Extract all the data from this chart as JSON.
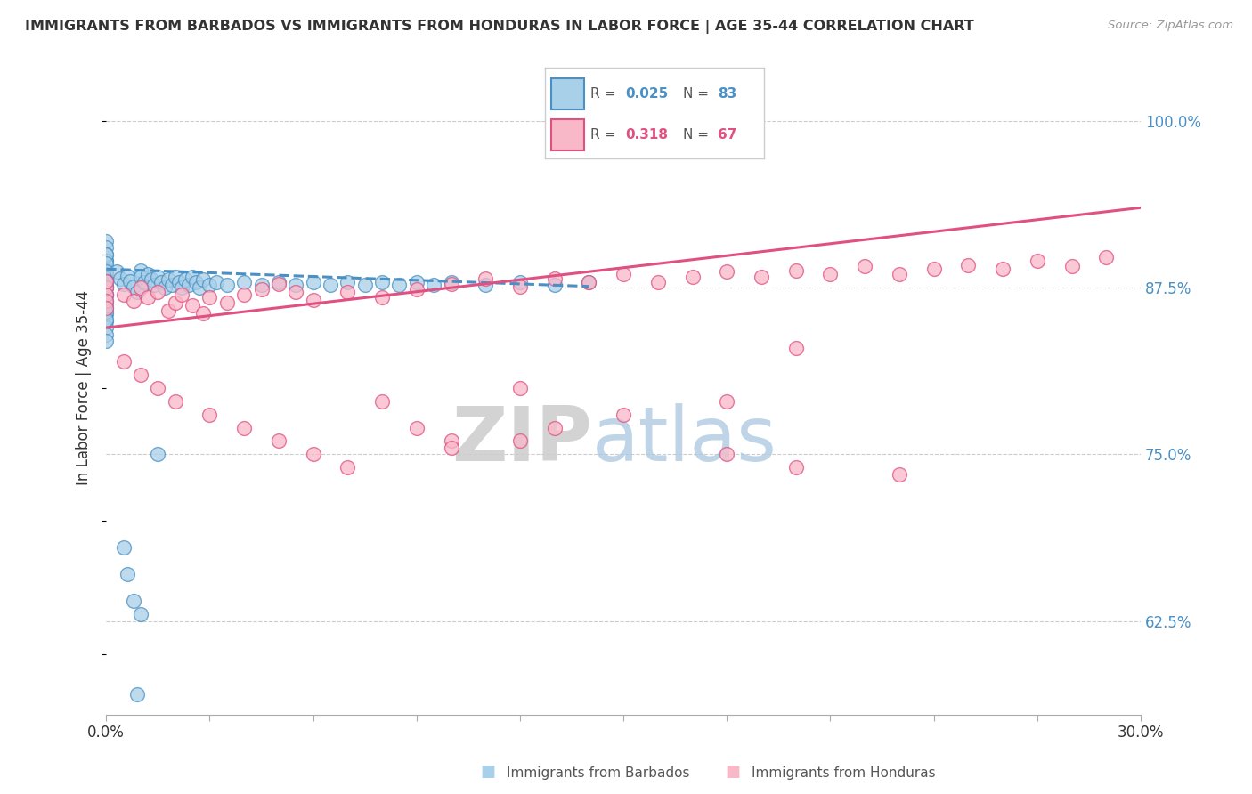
{
  "title": "IMMIGRANTS FROM BARBADOS VS IMMIGRANTS FROM HONDURAS IN LABOR FORCE | AGE 35-44 CORRELATION CHART",
  "source": "Source: ZipAtlas.com",
  "ylabel": "In Labor Force | Age 35-44",
  "yticks": [
    "62.5%",
    "75.0%",
    "87.5%",
    "100.0%"
  ],
  "ytick_vals": [
    0.625,
    0.75,
    0.875,
    1.0
  ],
  "xlim": [
    0.0,
    0.3
  ],
  "ylim": [
    0.555,
    1.045
  ],
  "color_blue": "#a8d0e8",
  "color_pink": "#f9b8c8",
  "color_blue_line": "#4a90c4",
  "color_pink_line": "#e05080",
  "watermark_zip": "ZIP",
  "watermark_atlas": "atlas",
  "barbados_x": [
    0.0,
    0.0,
    0.0,
    0.0,
    0.0,
    0.0,
    0.0,
    0.0,
    0.0,
    0.0,
    0.0,
    0.0,
    0.0,
    0.0,
    0.0,
    0.0,
    0.0,
    0.0,
    0.0,
    0.0,
    0.0,
    0.0,
    0.0,
    0.0,
    0.0,
    0.0,
    0.0,
    0.0,
    0.0,
    0.0,
    0.003,
    0.004,
    0.005,
    0.006,
    0.007,
    0.008,
    0.009,
    0.01,
    0.01,
    0.011,
    0.012,
    0.013,
    0.014,
    0.015,
    0.016,
    0.017,
    0.018,
    0.019,
    0.02,
    0.021,
    0.022,
    0.023,
    0.024,
    0.025,
    0.026,
    0.027,
    0.028,
    0.03,
    0.032,
    0.035,
    0.04,
    0.045,
    0.05,
    0.055,
    0.06,
    0.065,
    0.07,
    0.075,
    0.08,
    0.085,
    0.09,
    0.095,
    0.1,
    0.11,
    0.12,
    0.13,
    0.14,
    0.005,
    0.006,
    0.008,
    0.009,
    0.01,
    0.015
  ],
  "barbados_y": [
    0.91,
    0.905,
    0.9,
    0.895,
    0.89,
    0.885,
    0.88,
    0.875,
    0.87,
    0.865,
    0.86,
    0.855,
    0.85,
    0.845,
    0.84,
    0.835,
    0.895,
    0.888,
    0.882,
    0.876,
    0.87,
    0.863,
    0.857,
    0.851,
    0.9,
    0.893,
    0.887,
    0.88,
    0.875,
    0.87,
    0.887,
    0.882,
    0.878,
    0.884,
    0.88,
    0.876,
    0.872,
    0.888,
    0.883,
    0.879,
    0.885,
    0.881,
    0.877,
    0.883,
    0.879,
    0.875,
    0.881,
    0.877,
    0.883,
    0.879,
    0.875,
    0.881,
    0.877,
    0.883,
    0.879,
    0.875,
    0.881,
    0.877,
    0.879,
    0.877,
    0.879,
    0.877,
    0.879,
    0.877,
    0.879,
    0.877,
    0.879,
    0.877,
    0.879,
    0.877,
    0.879,
    0.877,
    0.879,
    0.877,
    0.879,
    0.877,
    0.879,
    0.68,
    0.66,
    0.64,
    0.57,
    0.63,
    0.75
  ],
  "honduras_x": [
    0.0,
    0.0,
    0.0,
    0.0,
    0.0,
    0.005,
    0.008,
    0.01,
    0.012,
    0.015,
    0.018,
    0.02,
    0.022,
    0.025,
    0.028,
    0.03,
    0.035,
    0.04,
    0.045,
    0.05,
    0.055,
    0.06,
    0.07,
    0.08,
    0.09,
    0.1,
    0.11,
    0.12,
    0.13,
    0.14,
    0.15,
    0.16,
    0.17,
    0.18,
    0.19,
    0.2,
    0.21,
    0.22,
    0.23,
    0.24,
    0.25,
    0.26,
    0.27,
    0.28,
    0.29,
    0.005,
    0.01,
    0.015,
    0.02,
    0.03,
    0.04,
    0.05,
    0.06,
    0.07,
    0.08,
    0.09,
    0.1,
    0.12,
    0.15,
    0.18,
    0.2,
    0.1,
    0.12,
    0.13,
    0.18,
    0.2,
    0.23
  ],
  "honduras_y": [
    0.875,
    0.87,
    0.865,
    0.88,
    0.86,
    0.87,
    0.865,
    0.875,
    0.868,
    0.872,
    0.858,
    0.864,
    0.87,
    0.862,
    0.856,
    0.868,
    0.864,
    0.87,
    0.874,
    0.878,
    0.872,
    0.866,
    0.872,
    0.868,
    0.874,
    0.878,
    0.882,
    0.876,
    0.882,
    0.879,
    0.885,
    0.879,
    0.883,
    0.887,
    0.883,
    0.888,
    0.885,
    0.891,
    0.885,
    0.889,
    0.892,
    0.889,
    0.895,
    0.891,
    0.898,
    0.82,
    0.81,
    0.8,
    0.79,
    0.78,
    0.77,
    0.76,
    0.75,
    0.74,
    0.79,
    0.77,
    0.76,
    0.8,
    0.78,
    0.79,
    0.83,
    0.755,
    0.76,
    0.77,
    0.75,
    0.74,
    0.735
  ],
  "barbados_trend_x": [
    0.0,
    0.14
  ],
  "barbados_trend_y": [
    0.889,
    0.876
  ],
  "honduras_trend_x": [
    0.0,
    0.3
  ],
  "honduras_trend_y": [
    0.845,
    0.935
  ]
}
